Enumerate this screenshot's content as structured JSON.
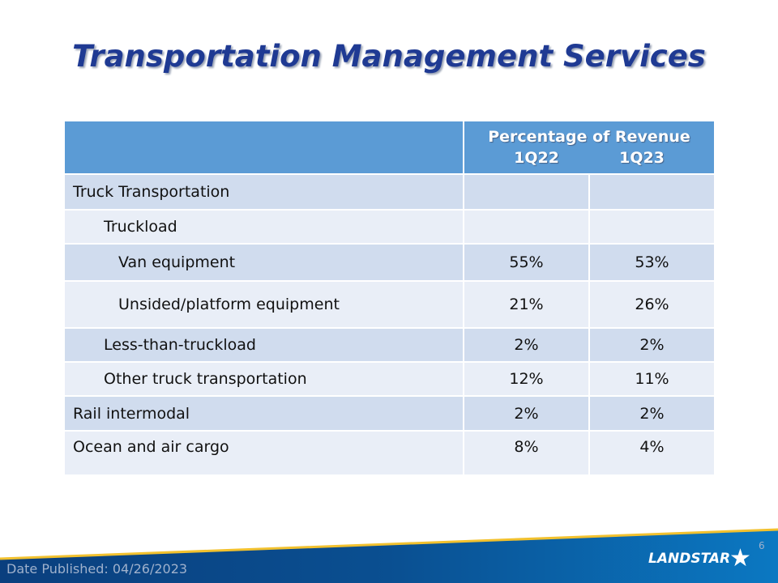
{
  "title": "Transportation Management Services",
  "table": {
    "header": {
      "group": "Percentage of Revenue",
      "col1": "1Q22",
      "col2": "1Q23"
    },
    "rows": [
      {
        "label": "Truck Transportation",
        "q22": "",
        "q23": ""
      },
      {
        "label": "Truckload",
        "q22": "",
        "q23": ""
      },
      {
        "label": "Van equipment",
        "q22": "55%",
        "q23": "53%"
      },
      {
        "label": "Unsided/platform equipment",
        "q22": "21%",
        "q23": "26%"
      },
      {
        "label": "Less-than-truckload",
        "q22": "2%",
        "q23": "2%"
      },
      {
        "label": "Other truck transportation",
        "q22": "12%",
        "q23": "11%"
      },
      {
        "label": "Rail intermodal",
        "q22": "2%",
        "q23": "2%"
      },
      {
        "label": "Ocean and air cargo",
        "q22": "8%",
        "q23": "4%"
      }
    ]
  },
  "footer": {
    "date": "Date Published:  04/26/2023",
    "page": "6",
    "logo": "LANDSTAR"
  },
  "colors": {
    "title": "#1f3a93",
    "header": "#5b9bd5",
    "row_dark": "#d0dcee",
    "row_light": "#e9eef7",
    "band": "#0a4f91",
    "accent": "#f2c12e"
  }
}
